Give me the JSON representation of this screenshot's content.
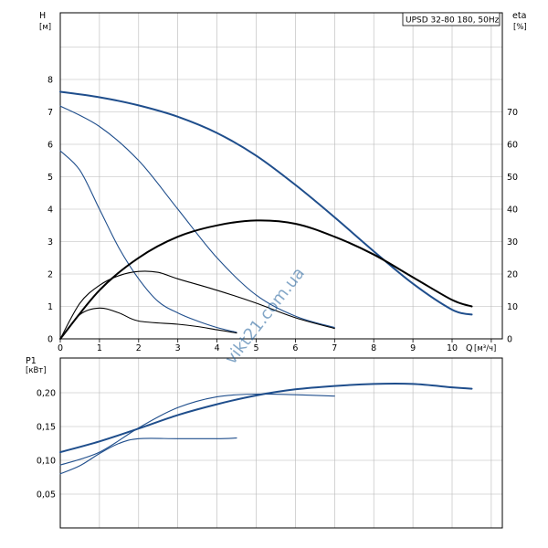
{
  "chart_data": [
    {
      "type": "line",
      "title": "UPSD 32-80 180, 50Hz",
      "watermark": "vikt21.com.ua",
      "xlabel": "Q",
      "xunit": "[м³/ч]",
      "ylabel_left": "H",
      "yunit_left": "[м]",
      "ylabel_right": "eta",
      "yunit_right": "[%]",
      "xlim": [
        0,
        11
      ],
      "ylim_left": [
        0,
        9
      ],
      "ylim_right": [
        0,
        90
      ],
      "xticks": [
        "0",
        "1",
        "2",
        "3",
        "4",
        "5",
        "6",
        "7",
        "8",
        "9",
        "10"
      ],
      "yticks_left": [
        "0",
        "1",
        "2",
        "3",
        "4",
        "5",
        "6",
        "7",
        "8"
      ],
      "yticks_right": [
        "0",
        "10",
        "20",
        "30",
        "40",
        "50",
        "60",
        "70"
      ],
      "grid": true,
      "colors": {
        "head": "#1f4e8c",
        "efficiency": "#000000"
      },
      "series": [
        {
          "kind": "head",
          "axis": "left",
          "thick": true,
          "points": [
            [
              0,
              7.62
            ],
            [
              1,
              7.45
            ],
            [
              2,
              7.2
            ],
            [
              3,
              6.85
            ],
            [
              4,
              6.35
            ],
            [
              5,
              5.65
            ],
            [
              6,
              4.75
            ],
            [
              7,
              3.75
            ],
            [
              8,
              2.7
            ],
            [
              9,
              1.7
            ],
            [
              10,
              0.9
            ],
            [
              10.5,
              0.75
            ]
          ]
        },
        {
          "kind": "head",
          "axis": "left",
          "thick": false,
          "points": [
            [
              0,
              7.18
            ],
            [
              1,
              6.55
            ],
            [
              2,
              5.5
            ],
            [
              3,
              4.0
            ],
            [
              4,
              2.5
            ],
            [
              5,
              1.35
            ],
            [
              6,
              0.7
            ],
            [
              7,
              0.35
            ]
          ]
        },
        {
          "kind": "head",
          "axis": "left",
          "thick": false,
          "points": [
            [
              0,
              5.8
            ],
            [
              0.5,
              5.2
            ],
            [
              1,
              4.0
            ],
            [
              1.5,
              2.8
            ],
            [
              2,
              1.85
            ],
            [
              2.5,
              1.15
            ],
            [
              3,
              0.8
            ],
            [
              3.5,
              0.55
            ],
            [
              4,
              0.35
            ],
            [
              4.5,
              0.2
            ]
          ]
        },
        {
          "kind": "efficiency",
          "axis": "right",
          "thick": true,
          "points": [
            [
              0,
              0
            ],
            [
              1,
              15
            ],
            [
              2,
              25
            ],
            [
              3,
              31.5
            ],
            [
              4,
              35
            ],
            [
              5,
              36.5
            ],
            [
              6,
              35.5
            ],
            [
              7,
              31.5
            ],
            [
              8,
              26
            ],
            [
              9,
              19
            ],
            [
              10,
              12
            ],
            [
              10.5,
              10
            ]
          ]
        },
        {
          "kind": "efficiency",
          "axis": "right",
          "thick": false,
          "points": [
            [
              0,
              0
            ],
            [
              0.5,
              11
            ],
            [
              1,
              16.5
            ],
            [
              1.5,
              19.5
            ],
            [
              2,
              20.8
            ],
            [
              2.5,
              20.5
            ],
            [
              3,
              18.5
            ],
            [
              4,
              15
            ],
            [
              5,
              11
            ],
            [
              6,
              6.5
            ],
            [
              7,
              3.2
            ]
          ]
        },
        {
          "kind": "efficiency",
          "axis": "right",
          "thick": false,
          "points": [
            [
              0,
              0
            ],
            [
              0.5,
              7.5
            ],
            [
              1,
              9.5
            ],
            [
              1.5,
              8
            ],
            [
              2,
              5.5
            ],
            [
              3,
              4.5
            ],
            [
              3.5,
              3.8
            ],
            [
              4,
              2.8
            ],
            [
              4.5,
              1.8
            ]
          ]
        }
      ]
    },
    {
      "type": "line",
      "ylabel": "P1",
      "yunit": "[кВт]",
      "xlim": [
        0,
        11
      ],
      "ylim": [
        0,
        0.25
      ],
      "yticks": [
        "0,05",
        "0,10",
        "0,15",
        "0,20"
      ],
      "grid": true,
      "colors": {
        "power": "#1f4e8c"
      },
      "series": [
        {
          "kind": "power",
          "thick": true,
          "points": [
            [
              0,
              0.112
            ],
            [
              1,
              0.128
            ],
            [
              2,
              0.147
            ],
            [
              3,
              0.167
            ],
            [
              4,
              0.183
            ],
            [
              5,
              0.196
            ],
            [
              6,
              0.205
            ],
            [
              7,
              0.21
            ],
            [
              8,
              0.213
            ],
            [
              9,
              0.213
            ],
            [
              10,
              0.208
            ],
            [
              10.5,
              0.206
            ]
          ]
        },
        {
          "kind": "power",
          "thick": false,
          "points": [
            [
              0,
              0.093
            ],
            [
              1,
              0.112
            ],
            [
              2,
              0.148
            ],
            [
              3,
              0.178
            ],
            [
              4,
              0.194
            ],
            [
              5,
              0.198
            ],
            [
              6,
              0.197
            ],
            [
              7,
              0.195
            ]
          ]
        },
        {
          "kind": "power",
          "thick": false,
          "points": [
            [
              0,
              0.08
            ],
            [
              0.5,
              0.092
            ],
            [
              1,
              0.11
            ],
            [
              1.5,
              0.125
            ],
            [
              2,
              0.132
            ],
            [
              3,
              0.132
            ],
            [
              4,
              0.132
            ],
            [
              4.5,
              0.133
            ]
          ]
        }
      ]
    }
  ]
}
